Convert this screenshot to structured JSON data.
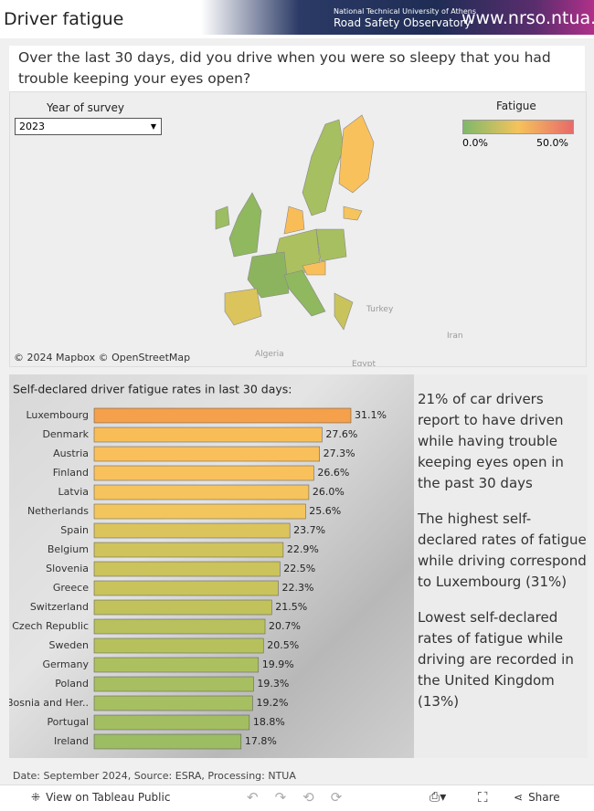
{
  "header": {
    "title": "Driver fatigue",
    "org_line1": "National Technical University of Athens",
    "org_line2": "Road Safety Observatory",
    "url": "www.nrso.ntua.gr"
  },
  "question": "Over the last 30 days, did you drive when you were so sleepy that you had trouble keeping your eyes open?",
  "map": {
    "filter_label": "Year of survey",
    "filter_value": "2023",
    "legend_title": "Fatigue",
    "legend_min": "0.0%",
    "legend_max": "50.0%",
    "place_labels": [
      "Turkey",
      "Iran",
      "Algeria",
      "Egypt"
    ],
    "attribution": "© 2024 Mapbox  © OpenStreetMap"
  },
  "chart_data": {
    "type": "hbar",
    "title": "Self-declared driver fatigue rates in last 30 days:",
    "categories": [
      "Luxembourg",
      "Denmark",
      "Austria",
      "Finland",
      "Latvia",
      "Netherlands",
      "Spain",
      "Belgium",
      "Slovenia",
      "Greece",
      "Switzerland",
      "Czech Republic",
      "Sweden",
      "Germany",
      "Poland",
      "Bosnia and Her..",
      "Portugal",
      "Ireland"
    ],
    "values": [
      31.1,
      27.6,
      27.3,
      26.6,
      26.0,
      25.6,
      23.7,
      22.9,
      22.5,
      22.3,
      21.5,
      20.7,
      20.5,
      19.9,
      19.3,
      19.2,
      18.8,
      17.8
    ],
    "value_labels": [
      "31.1%",
      "27.6%",
      "27.3%",
      "26.6%",
      "26.0%",
      "25.6%",
      "23.7%",
      "22.9%",
      "22.5%",
      "22.3%",
      "21.5%",
      "20.7%",
      "20.5%",
      "19.9%",
      "19.3%",
      "19.2%",
      "18.8%",
      "17.8%"
    ],
    "colors": [
      "#f5a04a",
      "#f9bd58",
      "#f9bf5a",
      "#f9c15c",
      "#f6c45c",
      "#f3c65d",
      "#dcc45c",
      "#cfc35c",
      "#cbc35c",
      "#c9c35c",
      "#c2c25c",
      "#b8c15d",
      "#b6c15d",
      "#adc05f",
      "#a7bf60",
      "#a6bf60",
      "#a3be60",
      "#9cbd62"
    ]
  },
  "side_text": [
    "21% of car drivers report to have driven while having trouble keeping eyes open in the past 30 days",
    "The highest self-declared rates of fatigue while driving correspond to Luxembourg (31%)",
    "Lowest self-declared rates of fatigue while driving are recorded in the United Kingdom (13%)"
  ],
  "footnote": "Date: September 2024, Source: ESRA, Processing: NTUA",
  "toolbar": {
    "view": "View on Tableau Public",
    "share": "Share"
  }
}
